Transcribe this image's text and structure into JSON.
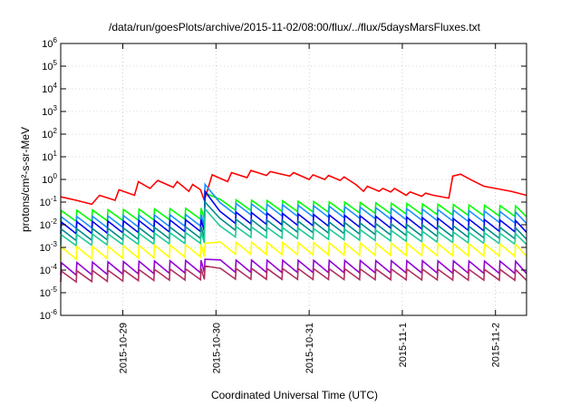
{
  "chart_data": {
    "type": "line",
    "title": "/data/run/goesPlots/archive/2015-11-02/08:00/flux/../flux/5daysMarsFluxes.txt",
    "xlabel": "Coordinated Universal Time (UTC)",
    "ylabel": "protons/cm²-s-sr-MeV",
    "yscale": "log",
    "ylim": [
      1e-06,
      1000000.0
    ],
    "y_ticks": [
      {
        "value": 1e-06,
        "base": "10",
        "exp": "-6"
      },
      {
        "value": 1e-05,
        "base": "10",
        "exp": "-5"
      },
      {
        "value": 0.0001,
        "base": "10",
        "exp": "-4"
      },
      {
        "value": 0.001,
        "base": "10",
        "exp": "-3"
      },
      {
        "value": 0.01,
        "base": "10",
        "exp": "-2"
      },
      {
        "value": 0.1,
        "base": "10",
        "exp": "-1"
      },
      {
        "value": 1,
        "base": "10",
        "exp": "0"
      },
      {
        "value": 10,
        "base": "10",
        "exp": "1"
      },
      {
        "value": 100,
        "base": "10",
        "exp": "2"
      },
      {
        "value": 1000,
        "base": "10",
        "exp": "3"
      },
      {
        "value": 10000,
        "base": "10",
        "exp": "4"
      },
      {
        "value": 100000,
        "base": "10",
        "exp": "5"
      },
      {
        "value": 1000000,
        "base": "10",
        "exp": "6"
      }
    ],
    "xlim": [
      "2015-10-28 08:00",
      "2015-11-02 08:00"
    ],
    "x_ticks": [
      {
        "label": "2015-10-29",
        "value": "2015-10-29 00:00"
      },
      {
        "label": "2015-10-30",
        "value": "2015-10-30 00:00"
      },
      {
        "label": "2015-10-31",
        "value": "2015-10-31 00:00"
      },
      {
        "label": "2015-11-1",
        "value": "2015-11-01 00:00"
      },
      {
        "label": "2015-11-2",
        "value": "2015-11-02 00:00"
      }
    ],
    "grid": true,
    "legend": "none",
    "series": [
      {
        "color": "#ff0000",
        "points": [
          [
            "2015-10-28 08:00",
            0.17
          ],
          [
            "2015-10-28 12:00",
            0.12
          ],
          [
            "2015-10-28 16:00",
            0.08
          ],
          [
            "2015-10-28 18:00",
            0.2
          ],
          [
            "2015-10-28 22:00",
            0.12
          ],
          [
            "2015-10-28 23:00",
            0.35
          ],
          [
            "2015-10-29 03:00",
            0.2
          ],
          [
            "2015-10-29 04:00",
            0.8
          ],
          [
            "2015-10-29 07:00",
            0.4
          ],
          [
            "2015-10-29 09:00",
            0.9
          ],
          [
            "2015-10-29 13:00",
            0.45
          ],
          [
            "2015-10-29 14:00",
            0.8
          ],
          [
            "2015-10-29 17:00",
            0.3
          ],
          [
            "2015-10-29 18:00",
            0.6
          ],
          [
            "2015-10-29 20:00",
            0.35
          ],
          [
            "2015-10-29 21:00",
            0.12
          ],
          [
            "2015-10-29 23:00",
            1.6
          ],
          [
            "2015-10-30 03:00",
            0.8
          ],
          [
            "2015-10-30 04:00",
            2.0
          ],
          [
            "2015-10-30 08:00",
            1.2
          ],
          [
            "2015-10-30 09:00",
            2.5
          ],
          [
            "2015-10-30 13:00",
            1.5
          ],
          [
            "2015-10-30 14:00",
            2.2
          ],
          [
            "2015-10-30 19:00",
            1.4
          ],
          [
            "2015-10-30 20:00",
            2.0
          ],
          [
            "2015-10-31 00:00",
            1.0
          ],
          [
            "2015-10-31 01:00",
            1.6
          ],
          [
            "2015-10-31 04:00",
            1.0
          ],
          [
            "2015-10-31 05:00",
            1.5
          ],
          [
            "2015-10-31 08:00",
            0.9
          ],
          [
            "2015-10-31 09:00",
            1.3
          ],
          [
            "2015-10-31 12:00",
            0.6
          ],
          [
            "2015-10-31 14:00",
            0.3
          ],
          [
            "2015-10-31 15:00",
            0.5
          ],
          [
            "2015-10-31 18:00",
            0.3
          ],
          [
            "2015-10-31 19:00",
            0.4
          ],
          [
            "2015-10-31 21:00",
            0.28
          ],
          [
            "2015-10-31 22:00",
            0.4
          ],
          [
            "2015-11-01 01:00",
            0.2
          ],
          [
            "2015-11-01 02:00",
            0.28
          ],
          [
            "2015-11-01 05:00",
            0.18
          ],
          [
            "2015-11-01 06:00",
            0.25
          ],
          [
            "2015-11-01 08:00",
            0.2
          ],
          [
            "2015-11-01 12:00",
            0.15
          ],
          [
            "2015-11-01 13:00",
            1.4
          ],
          [
            "2015-11-01 15:00",
            1.7
          ],
          [
            "2015-11-01 18:00",
            0.9
          ],
          [
            "2015-11-01 21:00",
            0.5
          ],
          [
            "2015-11-02 00:00",
            0.4
          ],
          [
            "2015-11-02 04:00",
            0.3
          ],
          [
            "2015-11-02 08:00",
            0.2
          ]
        ]
      },
      {
        "color": "#00ff00",
        "base_start": 0.014,
        "base_after": 0.045,
        "base_end": 0.022,
        "amp_factor": 3.0,
        "jump_peak": 0.25
      },
      {
        "color": "#1e90ff",
        "base_start": 0.007,
        "base_after": 0.03,
        "base_end": 0.011,
        "amp_factor": 3.2,
        "jump_peak": 0.6
      },
      {
        "color": "#0000ee",
        "base_start": 0.004,
        "base_after": 0.012,
        "base_end": 0.0045,
        "amp_factor": 3.3,
        "jump_peak": 0.3
      },
      {
        "color": "#008b8b",
        "base_start": 0.002,
        "base_after": 0.006,
        "base_end": 0.0022,
        "amp_factor": 3.2,
        "jump_peak": 0.1
      },
      {
        "color": "#20c997",
        "base_start": 0.0012,
        "base_after": 0.003,
        "base_end": 0.0013,
        "amp_factor": 3.0,
        "jump_peak": 0.05
      },
      {
        "color": "#ffff00",
        "base_start": 0.0003,
        "base_after": 0.0005,
        "base_end": 0.0004,
        "amp_factor": 3.5,
        "jump_peak": 0.0015
      },
      {
        "color": "#9400d3",
        "base_start": 6e-05,
        "base_after": 8e-05,
        "base_end": 7e-05,
        "amp_factor": 3.5,
        "jump_peak": 0.0003
      },
      {
        "color": "#b03060",
        "base_start": 3e-05,
        "base_after": 4e-05,
        "base_end": 3.5e-05,
        "amp_factor": 3.0,
        "jump_peak": 0.00015
      }
    ]
  }
}
